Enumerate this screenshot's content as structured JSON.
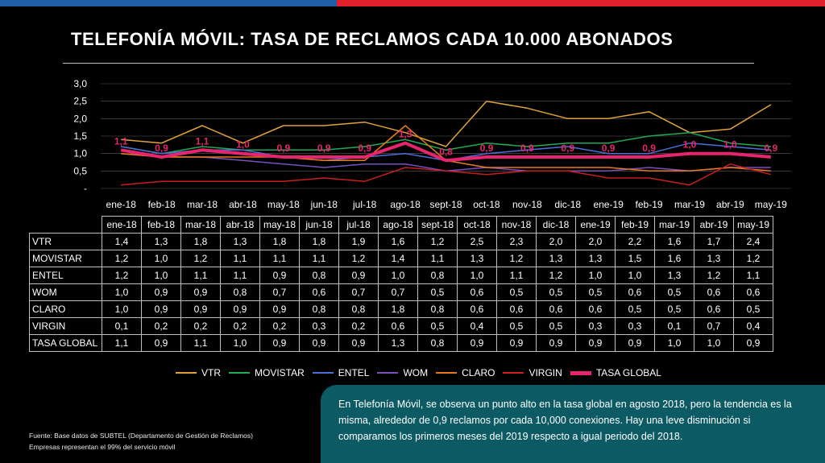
{
  "title": "TELEFONÍA MÓVIL: TASA DE RECLAMOS CADA 10.000 ABONADOS",
  "colors": {
    "background": "#000000",
    "top_bar_left": "#1e5fa8",
    "top_bar_right": "#e0202c",
    "note_box": "#0c5a63",
    "grid": "#595959"
  },
  "chart_data": {
    "type": "line",
    "categories": [
      "ene-18",
      "feb-18",
      "mar-18",
      "abr-18",
      "may-18",
      "jun-18",
      "jul-18",
      "ago-18",
      "sept-18",
      "oct-18",
      "nov-18",
      "dic-18",
      "ene-19",
      "feb-19",
      "mar-19",
      "abr-19",
      "may-19"
    ],
    "y_tick_labels": [
      "-",
      "0,5",
      "1,0",
      "1,5",
      "2,0",
      "2,5",
      "3,0"
    ],
    "ylim": [
      0,
      3.0
    ],
    "grid": true,
    "legend_position": "bottom",
    "series": [
      {
        "name": "VTR",
        "color": "#e0a33a",
        "width": 1.5,
        "values": [
          1.4,
          1.3,
          1.8,
          1.3,
          1.8,
          1.8,
          1.9,
          1.6,
          1.2,
          2.5,
          2.3,
          2.0,
          2.0,
          2.2,
          1.6,
          1.7,
          2.4
        ]
      },
      {
        "name": "MOVISTAR",
        "color": "#1faa55",
        "width": 1.5,
        "values": [
          1.2,
          1.0,
          1.2,
          1.1,
          1.1,
          1.1,
          1.2,
          1.4,
          1.1,
          1.3,
          1.2,
          1.3,
          1.3,
          1.5,
          1.6,
          1.3,
          1.2
        ]
      },
      {
        "name": "ENTEL",
        "color": "#4a6fd8",
        "width": 1.5,
        "values": [
          1.2,
          1.0,
          1.1,
          1.1,
          0.9,
          0.8,
          0.9,
          1.0,
          0.8,
          1.0,
          1.1,
          1.2,
          1.0,
          1.0,
          1.3,
          1.2,
          1.1
        ]
      },
      {
        "name": "WOM",
        "color": "#7a4fc2",
        "width": 1.5,
        "values": [
          1.0,
          0.9,
          0.9,
          0.8,
          0.7,
          0.6,
          0.7,
          0.7,
          0.5,
          0.6,
          0.5,
          0.5,
          0.5,
          0.6,
          0.5,
          0.6,
          0.6
        ]
      },
      {
        "name": "CLARO",
        "color": "#e87a1c",
        "width": 1.5,
        "values": [
          1.0,
          0.9,
          0.9,
          0.9,
          0.9,
          0.8,
          0.8,
          1.8,
          0.8,
          0.6,
          0.6,
          0.6,
          0.6,
          0.5,
          0.5,
          0.6,
          0.5
        ]
      },
      {
        "name": "VIRGIN",
        "color": "#c81e1e",
        "width": 1.5,
        "values": [
          0.1,
          0.2,
          0.2,
          0.2,
          0.2,
          0.3,
          0.2,
          0.6,
          0.5,
          0.4,
          0.5,
          0.5,
          0.3,
          0.3,
          0.1,
          0.7,
          0.4
        ]
      },
      {
        "name": "TASA GLOBAL",
        "color": "#e8246e",
        "width": 4,
        "values": [
          1.1,
          0.9,
          1.1,
          1.0,
          0.9,
          0.9,
          0.9,
          1.3,
          0.8,
          0.9,
          0.9,
          0.9,
          0.9,
          0.9,
          1.0,
          1.0,
          0.9
        ]
      }
    ],
    "data_labels": [
      "1,1",
      "0,9",
      "1,1",
      "1,0",
      "0,9",
      "0,9",
      "0,9",
      "1,3",
      "0,8",
      "0,9",
      "0,9",
      "0,9",
      "0,9",
      "0,9",
      "1,0",
      "1,0",
      "0,9"
    ]
  },
  "table": {
    "headers": [
      "ene-18",
      "feb-18",
      "mar-18",
      "abr-18",
      "may-18",
      "jun-18",
      "jul-18",
      "ago-18",
      "sept-18",
      "oct-18",
      "nov-18",
      "dic-18",
      "ene-19",
      "feb-19",
      "mar-19",
      "abr-19",
      "may-19"
    ],
    "rows": [
      {
        "name": "VTR",
        "values": [
          "1,4",
          "1,3",
          "1,8",
          "1,3",
          "1,8",
          "1,8",
          "1,9",
          "1,6",
          "1,2",
          "2,5",
          "2,3",
          "2,0",
          "2,0",
          "2,2",
          "1,6",
          "1,7",
          "2,4"
        ]
      },
      {
        "name": "MOVISTAR",
        "values": [
          "1,2",
          "1,0",
          "1,2",
          "1,1",
          "1,1",
          "1,1",
          "1,2",
          "1,4",
          "1,1",
          "1,3",
          "1,2",
          "1,3",
          "1,3",
          "1,5",
          "1,6",
          "1,3",
          "1,2"
        ]
      },
      {
        "name": "ENTEL",
        "values": [
          "1,2",
          "1,0",
          "1,1",
          "1,1",
          "0,9",
          "0,8",
          "0,9",
          "1,0",
          "0,8",
          "1,0",
          "1,1",
          "1,2",
          "1,0",
          "1,0",
          "1,3",
          "1,2",
          "1,1"
        ]
      },
      {
        "name": "WOM",
        "values": [
          "1,0",
          "0,9",
          "0,9",
          "0,8",
          "0,7",
          "0,6",
          "0,7",
          "0,7",
          "0,5",
          "0,6",
          "0,5",
          "0,5",
          "0,5",
          "0,6",
          "0,5",
          "0,6",
          "0,6"
        ]
      },
      {
        "name": "CLARO",
        "values": [
          "1,0",
          "0,9",
          "0,9",
          "0,9",
          "0,9",
          "0,8",
          "0,8",
          "1,8",
          "0,8",
          "0,6",
          "0,6",
          "0,6",
          "0,6",
          "0,5",
          "0,5",
          "0,6",
          "0,5"
        ]
      },
      {
        "name": "VIRGIN",
        "values": [
          "0,1",
          "0,2",
          "0,2",
          "0,2",
          "0,2",
          "0,3",
          "0,2",
          "0,6",
          "0,5",
          "0,4",
          "0,5",
          "0,5",
          "0,3",
          "0,3",
          "0,1",
          "0,7",
          "0,4"
        ]
      },
      {
        "name": "TASA GLOBAL",
        "values": [
          "1,1",
          "0,9",
          "1,1",
          "1,0",
          "0,9",
          "0,9",
          "0,9",
          "1,3",
          "0,8",
          "0,9",
          "0,9",
          "0,9",
          "0,9",
          "0,9",
          "1,0",
          "1,0",
          "0,9"
        ]
      }
    ]
  },
  "note": "En Telefonía Móvil, se observa un punto alto en la tasa global en agosto 2018, pero la tendencia es la misma, alrededor de 0,9 reclamos por cada 10,000 conexiones. Hay una leve disminución si comparamos los primeros meses del 2019 respecto a igual periodo del 2018.",
  "footnote": {
    "line1": "Fuente: Base datos de SUBTEL (Departamento de Gestión de Reclamos)",
    "line2": "Empresas representan el 99% del servicio móvil"
  }
}
